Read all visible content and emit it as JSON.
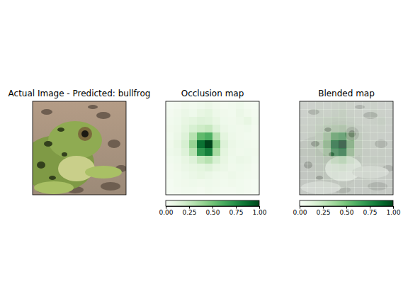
{
  "chart_data": [
    {
      "type": "image",
      "title": "Actual Image - Predicted: bullfrog",
      "tick_labels": false
    },
    {
      "type": "heatmap",
      "title": "Occlusion map",
      "tick_labels": false,
      "cells": [
        [
          0.02,
          0.03,
          0.05,
          0.04,
          0.06,
          0.08,
          0.05,
          0.03,
          0.04,
          0.06,
          0.03,
          0.02
        ],
        [
          0.03,
          0.05,
          0.08,
          0.06,
          0.1,
          0.12,
          0.07,
          0.05,
          0.04,
          0.08,
          0.05,
          0.03
        ],
        [
          0.04,
          0.06,
          0.1,
          0.12,
          0.15,
          0.14,
          0.1,
          0.06,
          0.05,
          0.07,
          0.1,
          0.04
        ],
        [
          0.05,
          0.07,
          0.12,
          0.18,
          0.22,
          0.25,
          0.15,
          0.08,
          0.06,
          0.05,
          0.06,
          0.03
        ],
        [
          0.04,
          0.08,
          0.15,
          0.3,
          0.55,
          0.6,
          0.3,
          0.12,
          0.07,
          0.05,
          0.04,
          0.03
        ],
        [
          0.05,
          0.1,
          0.18,
          0.4,
          0.85,
          1.0,
          0.45,
          0.15,
          0.08,
          0.06,
          0.05,
          0.04
        ],
        [
          0.06,
          0.08,
          0.15,
          0.3,
          0.7,
          0.8,
          0.35,
          0.12,
          0.07,
          0.05,
          0.06,
          0.05
        ],
        [
          0.04,
          0.06,
          0.1,
          0.15,
          0.25,
          0.3,
          0.18,
          0.1,
          0.06,
          0.08,
          0.07,
          0.04
        ],
        [
          0.03,
          0.05,
          0.08,
          0.1,
          0.12,
          0.15,
          0.1,
          0.08,
          0.05,
          0.06,
          0.05,
          0.03
        ],
        [
          0.03,
          0.04,
          0.06,
          0.08,
          0.1,
          0.08,
          0.06,
          0.05,
          0.07,
          0.05,
          0.04,
          0.03
        ],
        [
          0.02,
          0.04,
          0.05,
          0.06,
          0.05,
          0.06,
          0.05,
          0.04,
          0.05,
          0.04,
          0.03,
          0.02
        ],
        [
          0.02,
          0.03,
          0.04,
          0.04,
          0.03,
          0.05,
          0.04,
          0.03,
          0.03,
          0.04,
          0.03,
          0.02
        ]
      ],
      "colorbar": {
        "range": [
          0,
          1
        ],
        "ticks": [
          {
            "value": 0,
            "label": "0.00"
          },
          {
            "value": 0.25,
            "label": "0.25"
          },
          {
            "value": 0.5,
            "label": "0.50"
          },
          {
            "value": 0.75,
            "label": "0.75"
          },
          {
            "value": 1,
            "label": "1.00"
          }
        ]
      }
    },
    {
      "type": "blended",
      "title": "Blended map",
      "tick_labels": false,
      "colorbar": {
        "range": [
          0,
          1
        ],
        "ticks": [
          {
            "value": 0,
            "label": "0.00"
          },
          {
            "value": 0.25,
            "label": "0.25"
          },
          {
            "value": 0.5,
            "label": "0.50"
          },
          {
            "value": 0.75,
            "label": "0.75"
          },
          {
            "value": 1,
            "label": "1.00"
          }
        ]
      }
    }
  ]
}
